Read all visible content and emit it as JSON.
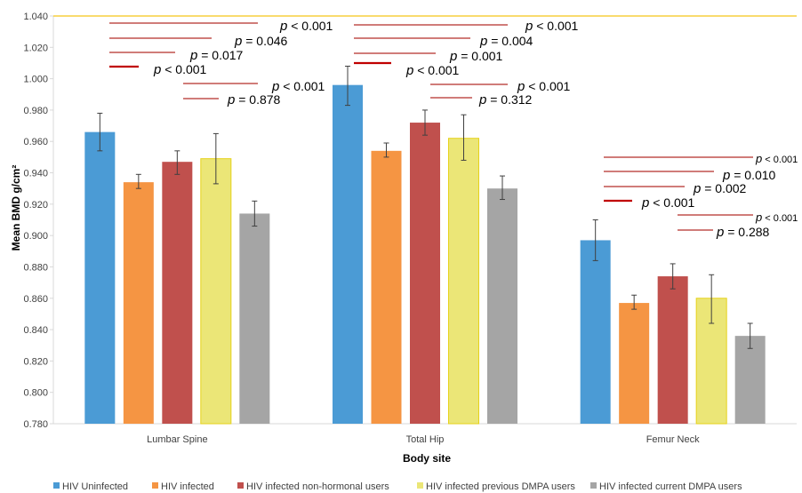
{
  "chart_data": {
    "type": "bar",
    "ylabel": "Mean BMD g/cm²",
    "xlabel": "Body site",
    "ylim": [
      0.78,
      1.04
    ],
    "yticks": [
      "0.780",
      "0.800",
      "0.820",
      "0.840",
      "0.860",
      "0.880",
      "0.900",
      "0.920",
      "0.940",
      "0.960",
      "0.980",
      "1.000",
      "1.020",
      "1.040"
    ],
    "categories": [
      "Lumbar Spine",
      "Total Hip",
      "Femur Neck"
    ],
    "series": [
      {
        "name": "HIV Uninfected",
        "color": "#4b9bd5",
        "values": [
          0.966,
          0.996,
          0.897
        ],
        "err_low": [
          0.954,
          0.983,
          0.884
        ],
        "err_high": [
          0.978,
          1.008,
          0.91
        ]
      },
      {
        "name": "HIV infected",
        "color": "#f59543",
        "values": [
          0.934,
          0.954,
          0.857
        ],
        "err_low": [
          0.93,
          0.95,
          0.853
        ],
        "err_high": [
          0.939,
          0.959,
          0.862
        ]
      },
      {
        "name": "HIV infected non-hormonal users",
        "color": "#c0504d",
        "values": [
          0.947,
          0.972,
          0.874
        ],
        "err_low": [
          0.939,
          0.964,
          0.866
        ],
        "err_high": [
          0.954,
          0.98,
          0.882
        ]
      },
      {
        "name": "HIV infected previous DMPA users",
        "color": "#ebe677",
        "values": [
          0.949,
          0.962,
          0.86
        ],
        "err_low": [
          0.933,
          0.948,
          0.844
        ],
        "err_high": [
          0.965,
          0.977,
          0.875
        ]
      },
      {
        "name": "HIV infected current DMPA users",
        "color": "#a5a5a5",
        "values": [
          0.914,
          0.93,
          0.836
        ],
        "err_low": [
          0.906,
          0.923,
          0.828
        ],
        "err_high": [
          0.922,
          0.938,
          0.844
        ]
      }
    ],
    "grid": false,
    "legend": "bottom",
    "annotations": [
      {
        "group": 0,
        "bold_p": true,
        "text": " < 0.001",
        "small": false
      },
      {
        "group": 0,
        "bold_p": true,
        "text": " = 0.046",
        "small": false
      },
      {
        "group": 0,
        "bold_p": true,
        "text": " = 0.017",
        "small": false
      },
      {
        "group": 0,
        "bold_p": true,
        "text": " < 0.001",
        "small": false
      },
      {
        "group": 0,
        "bold_p": true,
        "text": " < 0.001",
        "small": false
      },
      {
        "group": 0,
        "bold_p": true,
        "text": " = 0.878",
        "small": false
      },
      {
        "group": 1,
        "bold_p": true,
        "text": " < 0.001",
        "small": false
      },
      {
        "group": 1,
        "bold_p": true,
        "text": " = 0.004",
        "small": false
      },
      {
        "group": 1,
        "bold_p": true,
        "text": " = 0.001",
        "small": false
      },
      {
        "group": 1,
        "bold_p": true,
        "text": " < 0.001",
        "small": false
      },
      {
        "group": 1,
        "bold_p": true,
        "text": " < 0.001",
        "small": false
      },
      {
        "group": 1,
        "bold_p": true,
        "text": " = 0.312",
        "small": false
      },
      {
        "group": 2,
        "bold_p": true,
        "text": " < 0.001",
        "small": true
      },
      {
        "group": 2,
        "bold_p": true,
        "text": " = 0.010",
        "small": false
      },
      {
        "group": 2,
        "bold_p": true,
        "text": " = 0.002",
        "small": false
      },
      {
        "group": 2,
        "bold_p": true,
        "text": " < 0.001",
        "small": false
      },
      {
        "group": 2,
        "bold_p": true,
        "text": " < 0.001",
        "small": true
      },
      {
        "group": 2,
        "bold_p": true,
        "text": " = 0.288",
        "small": false
      }
    ],
    "p_symbol": "p",
    "colors": {
      "axis": "#d9d9d9",
      "top_line": "#f5c518",
      "annotation_line": "#c0504d",
      "annotation_line_dark": "#c00000",
      "error_bar": "#404040"
    }
  }
}
